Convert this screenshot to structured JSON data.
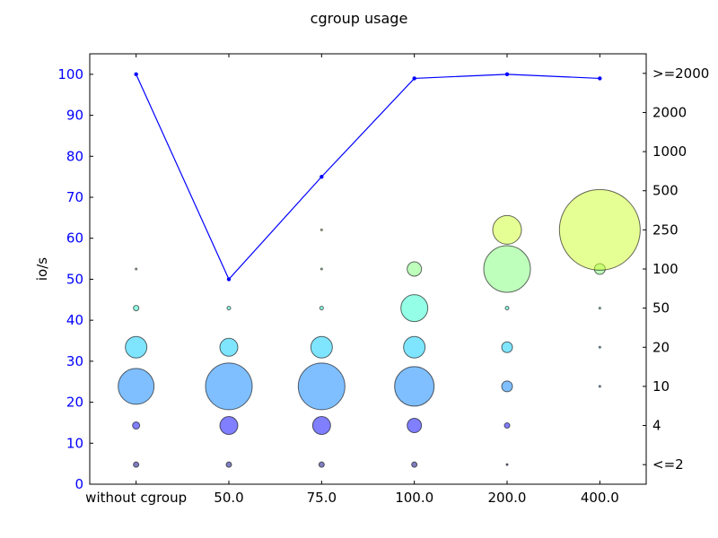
{
  "chart_data": {
    "type": "line",
    "title": "cgroup usage",
    "categories": [
      "without cgroup",
      "50.0",
      "75.0",
      "100.0",
      "200.0",
      "400.0"
    ],
    "ylabel": "io/s",
    "ylim": [
      0,
      105
    ],
    "yticks": [
      0,
      10,
      20,
      30,
      40,
      50,
      60,
      70,
      80,
      90,
      100
    ],
    "left_axis_color": "#0000ff",
    "grid": false,
    "legend": "none",
    "series": [
      {
        "values": [
          100,
          50,
          75,
          99,
          100,
          99
        ],
        "color": "#0000ff"
      }
    ],
    "right_axis": {
      "type": "scatter",
      "categories": [
        "<=2",
        "4",
        "10",
        "20",
        "50",
        "100",
        "250",
        "500",
        "1000",
        "2000",
        ">=2000"
      ],
      "bubble_grid": [
        [
          3,
          4,
          20,
          12,
          3,
          1,
          0,
          0,
          0,
          0,
          0
        ],
        [
          3,
          10,
          26,
          10,
          2,
          0,
          0,
          0,
          0,
          0,
          0
        ],
        [
          3,
          10,
          26,
          12,
          2,
          1,
          1,
          0,
          0,
          0,
          0
        ],
        [
          3,
          8,
          22,
          12,
          15,
          8,
          0,
          0,
          0,
          0,
          0
        ],
        [
          1,
          3,
          6,
          6,
          2,
          26,
          16,
          0,
          0,
          0,
          0
        ],
        [
          0,
          0,
          1,
          1,
          1,
          6,
          45,
          0,
          0,
          0,
          0
        ]
      ],
      "colors": [
        "#00007f",
        "#0000ff",
        "#0080ff",
        "#00ccff",
        "#29ffce",
        "#7dff7a",
        "#ceff29",
        "#ffc400",
        "#ff6800",
        "#ff0b00",
        "#7f0000"
      ]
    }
  }
}
